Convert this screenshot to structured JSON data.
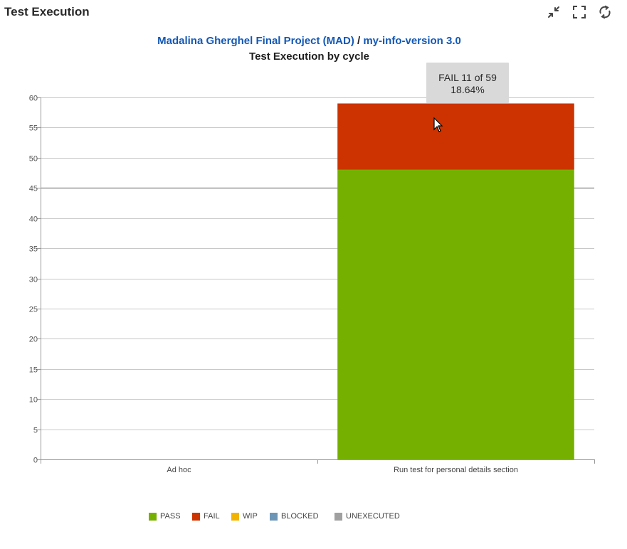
{
  "header": {
    "title": "Test Execution",
    "tools": [
      {
        "name": "collapse-icon"
      },
      {
        "name": "fullscreen-icon"
      },
      {
        "name": "refresh-icon"
      }
    ]
  },
  "chart_header": {
    "project_link": "Madalina Gherghel Final Project (MAD)",
    "separator": " / ",
    "version_link": "my-info-version 3.0",
    "subtitle": "Test Execution by cycle"
  },
  "tooltip": {
    "line1": "FAIL 11 of 59",
    "line2": "18.64%"
  },
  "colors": {
    "PASS": "#75b000",
    "FAIL": "#cc3300",
    "WIP": "#f2b300",
    "BLOCKED": "#6d96b6",
    "UNEXECUTED": "#a0a0a0"
  },
  "chart_data": {
    "type": "bar",
    "stacked": true,
    "categories": [
      "Ad hoc",
      "Run test for personal details section"
    ],
    "series": [
      {
        "name": "PASS",
        "values": [
          0,
          48
        ]
      },
      {
        "name": "FAIL",
        "values": [
          0,
          11
        ]
      },
      {
        "name": "WIP",
        "values": [
          0,
          0
        ]
      },
      {
        "name": "BLOCKED",
        "values": [
          0,
          0
        ]
      },
      {
        "name": "UNEXECUTED",
        "values": [
          0,
          0
        ]
      }
    ],
    "ylim": [
      0,
      60
    ],
    "yticks": [
      0,
      5,
      10,
      15,
      20,
      25,
      30,
      35,
      40,
      45,
      50,
      55,
      60
    ],
    "grid": true,
    "legend_position": "bottom"
  },
  "legend": [
    "PASS",
    "FAIL",
    "WIP",
    "BLOCKED",
    "UNEXECUTED"
  ]
}
